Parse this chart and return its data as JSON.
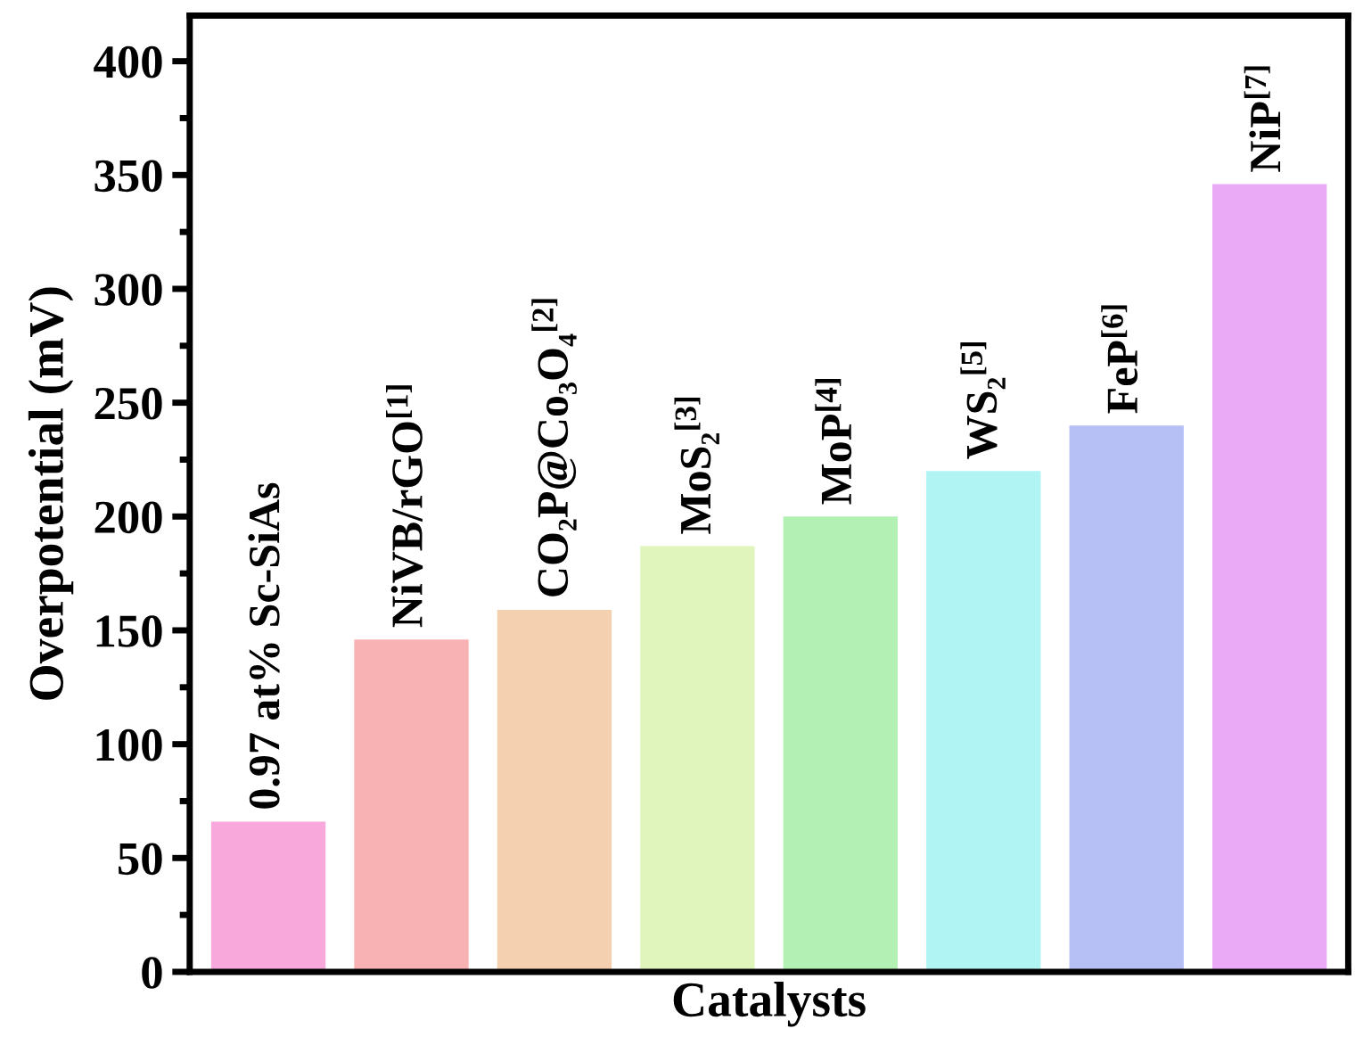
{
  "chart_data": {
    "type": "bar",
    "xlabel": "Catalysts",
    "ylabel": "Overpotential (mV)",
    "categories": [
      "0.97 at% Sc-SiAs",
      "NiVB/rGO$^{[1]}$",
      "CO₂P@Co₃O₄$^{[2]}$",
      "MoS₂$^{[3]}$",
      "MoP$^{[4]}$",
      "WS₂$^{[5]}$",
      "FeP$^{[6]}$",
      "NiP$^{[7]}$"
    ],
    "values": [
      66,
      146,
      159,
      187,
      200,
      220,
      240,
      346
    ],
    "colors": [
      "#f9a8dc",
      "#f8b2b4",
      "#f5d0b0",
      "#e0f5bc",
      "#b2f0b4",
      "#b0f4f4",
      "#b6c0f4",
      "#eaaaf6"
    ],
    "ylim": [
      0,
      420
    ],
    "yticks": [
      0,
      50,
      100,
      150,
      200,
      250,
      300,
      350,
      400
    ],
    "tick_labels": "y",
    "grid": false,
    "legend": false
  }
}
